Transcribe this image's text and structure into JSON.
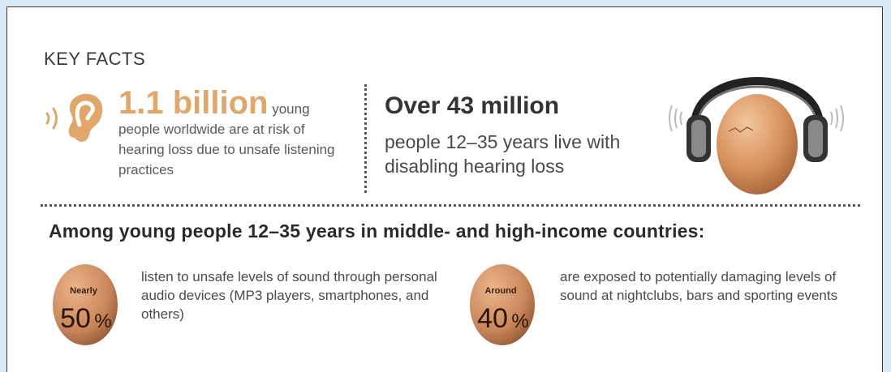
{
  "title": "KEY FACTS",
  "fact1": {
    "big": "1.1 billion",
    "rest": " young people worldwide are at risk of hearing loss due to unsafe listening practices"
  },
  "fact2": {
    "big": "Over 43 million",
    "text": "people 12–35 years live with disabling hearing loss"
  },
  "heading": "Among young people 12–35 years in middle- and high-income countries:",
  "stats": [
    {
      "qualifier": "Nearly",
      "value": "50",
      "unit": "%",
      "text": "listen to unsafe levels of sound through personal audio devices (MP3 players, smartphones, and others)"
    },
    {
      "qualifier": "Around",
      "value": "40",
      "unit": "%",
      "text": "are exposed to potentially damaging levels of sound at nightclubs, bars and sporting events"
    }
  ],
  "colors": {
    "accent": "#e0a66a",
    "egg": "#c9865a",
    "background": "#d8eaf4"
  },
  "icons": [
    "ear-icon",
    "headphones-egg-illustration",
    "egg-icon"
  ]
}
